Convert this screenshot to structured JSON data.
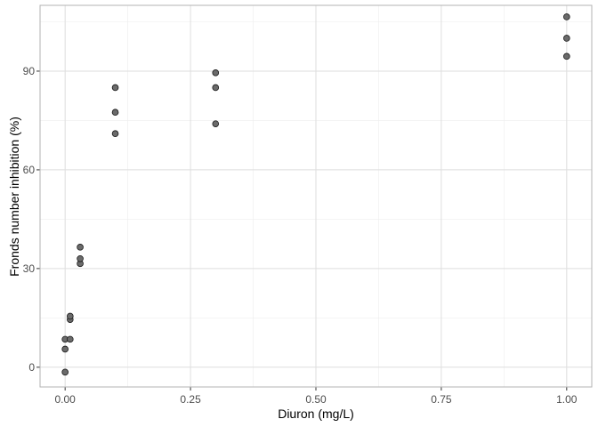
{
  "chart_data": {
    "type": "scatter",
    "title": "",
    "xlabel": "Diuron (mg/L)",
    "ylabel": "Fronds number inhibition (%)",
    "xlim": [
      -0.05,
      1.05
    ],
    "ylim": [
      -6,
      110
    ],
    "x_ticks": [
      0.0,
      0.25,
      0.5,
      0.75,
      1.0
    ],
    "x_tick_labels": [
      "0.00",
      "0.25",
      "0.50",
      "0.75",
      "1.00"
    ],
    "y_ticks": [
      0,
      30,
      60,
      90
    ],
    "y_tick_labels": [
      "0",
      "30",
      "60",
      "90"
    ],
    "grid": true,
    "legend": "none",
    "series": [
      {
        "points": [
          {
            "x": 0.0,
            "y": -1.5
          },
          {
            "x": 0.0,
            "y": 5.5
          },
          {
            "x": 0.0,
            "y": 8.5
          },
          {
            "x": 0.01,
            "y": 8.5
          },
          {
            "x": 0.01,
            "y": 14.5
          },
          {
            "x": 0.01,
            "y": 15.5
          },
          {
            "x": 0.03,
            "y": 31.5
          },
          {
            "x": 0.03,
            "y": 33.0
          },
          {
            "x": 0.03,
            "y": 36.5
          },
          {
            "x": 0.1,
            "y": 71.0
          },
          {
            "x": 0.1,
            "y": 77.5
          },
          {
            "x": 0.1,
            "y": 85.0
          },
          {
            "x": 0.3,
            "y": 74.0
          },
          {
            "x": 0.3,
            "y": 85.0
          },
          {
            "x": 0.3,
            "y": 89.5
          },
          {
            "x": 1.0,
            "y": 94.5
          },
          {
            "x": 1.0,
            "y": 100.0
          },
          {
            "x": 1.0,
            "y": 106.5
          }
        ]
      }
    ],
    "colors": {
      "point_fill": "#6b6b6b",
      "point_stroke": "#1a1a1a",
      "grid_major": "#dedede",
      "grid_minor": "#ededed",
      "panel_border": "#b3b3b3",
      "tick_label": "#4d4d4d",
      "axis_title": "#000000"
    }
  }
}
